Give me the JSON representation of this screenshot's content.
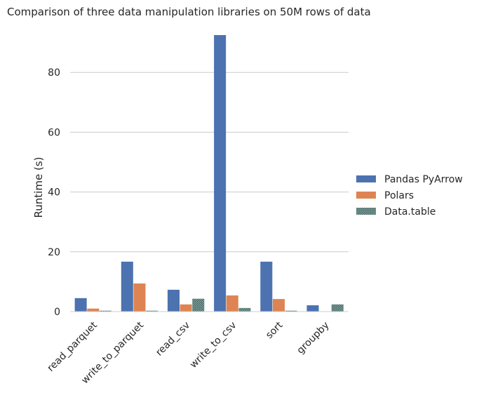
{
  "chart_data": {
    "type": "bar",
    "title": "Comparison of three data manipulation libraries on 50M rows of data",
    "xlabel": "",
    "ylabel": "Runtime (s)",
    "categories": [
      "read_parquet",
      "write_to_parquet",
      "read_csv",
      "write_to_csv",
      "sort",
      "groupby"
    ],
    "ylim": [
      0,
      92.5
    ],
    "yticks": [
      0,
      20,
      40,
      60,
      80
    ],
    "grid": "horizontal",
    "legend_position": "right",
    "series": [
      {
        "name": "Pandas PyArrow",
        "color": "#4c72b0",
        "values": [
          4.5,
          16.7,
          7.3,
          92.5,
          16.7,
          2.1
        ]
      },
      {
        "name": "Polars",
        "color": "#dd8452",
        "values": [
          1.0,
          9.4,
          2.4,
          5.4,
          4.2,
          0.1
        ]
      },
      {
        "name": "Data.table",
        "color": "#6b8e8a",
        "values": [
          0.3,
          0.3,
          4.3,
          1.2,
          0.3,
          2.4
        ]
      }
    ]
  }
}
